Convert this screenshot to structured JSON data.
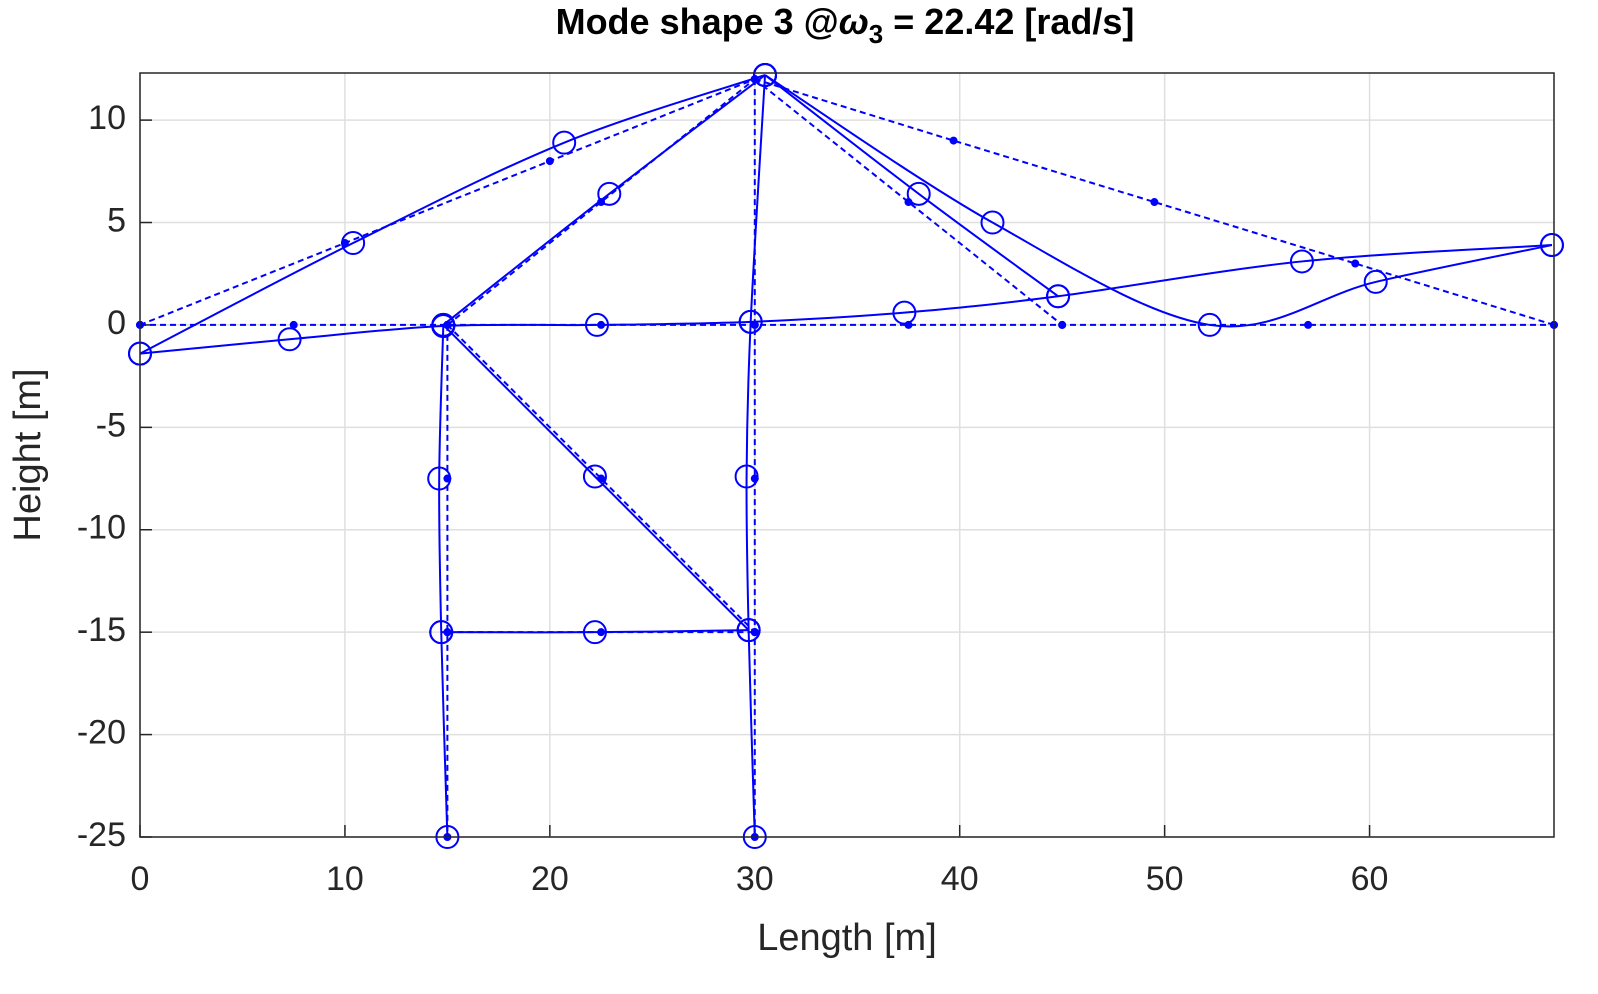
{
  "chart_data": {
    "type": "line",
    "title": [
      "Mode shape 3 @",
      "ω",
      "3",
      " = 22.42 [rad/s]"
    ],
    "x_label": "Length [m]",
    "y_label": "Height [m]",
    "xlim": [
      0,
      69
    ],
    "ylim": [
      -25,
      12.3
    ],
    "xticks": [
      0,
      10,
      20,
      30,
      40,
      50,
      60
    ],
    "yticks": [
      -25,
      -20,
      -15,
      -10,
      -5,
      0,
      5,
      10
    ],
    "grid": true,
    "color": "#0000ff",
    "series": [
      {
        "line": "dashed",
        "marker": "dot",
        "x": [
          0,
          7.5,
          15,
          22.5,
          30,
          37.5,
          45,
          57,
          69,
          null,
          0,
          10,
          20,
          30,
          null,
          30,
          39.7,
          49.5,
          59.3,
          69,
          null,
          15,
          22.5,
          30,
          null,
          30,
          37.5,
          45,
          null,
          15,
          15,
          15,
          15,
          null,
          30,
          30,
          30,
          30,
          30,
          null,
          15,
          22.5,
          30,
          null,
          15,
          22.5,
          30
        ],
        "y": [
          0,
          0,
          0,
          0,
          0,
          0,
          0,
          0,
          0,
          null,
          0,
          4,
          8,
          12,
          null,
          12,
          9,
          6,
          3,
          0,
          null,
          0,
          6,
          12,
          null,
          12,
          6,
          0,
          null,
          0,
          -7.5,
          -15,
          -25,
          null,
          12,
          0,
          -7.5,
          -15,
          -25,
          null,
          0,
          -7.5,
          -15,
          null,
          -15,
          -15,
          -15
        ]
      },
      {
        "line": "solid",
        "marker": "circle",
        "x": [
          0,
          7.3,
          14.8,
          22.3,
          29.8,
          37.3,
          44.8,
          56.7,
          68.9,
          null,
          0,
          10.4,
          20.7,
          30.5,
          null,
          30.5,
          41.6,
          52.2,
          60.3,
          68.9,
          null,
          14.8,
          22.9,
          30.5,
          null,
          30.5,
          38,
          44.8,
          null,
          14.8,
          14.6,
          14.7,
          15,
          null,
          30.5,
          29.8,
          29.6,
          29.7,
          30,
          null,
          14.8,
          22.2,
          29.7,
          null,
          14.7,
          22.2,
          29.7
        ],
        "y": [
          -1.4,
          -0.7,
          -0.05,
          0,
          0.15,
          0.6,
          1.4,
          3.1,
          3.9,
          null,
          -1.4,
          4,
          8.9,
          12.2,
          null,
          12.2,
          5,
          0,
          2.1,
          3.9,
          null,
          0,
          6.4,
          12.2,
          null,
          12.2,
          6.4,
          1.4,
          null,
          -0.05,
          -7.5,
          -15,
          -25,
          null,
          12.2,
          0.15,
          -7.4,
          -14.9,
          -25,
          null,
          0,
          -7.4,
          -14.9,
          null,
          -15,
          -15,
          -14.9
        ]
      }
    ]
  }
}
